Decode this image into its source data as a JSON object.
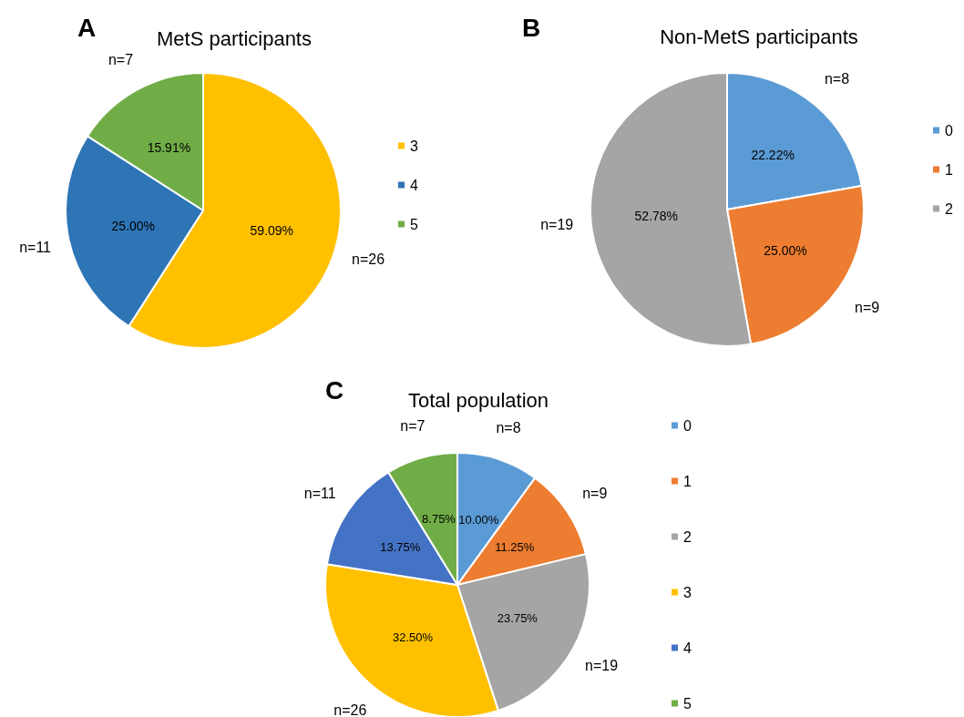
{
  "chart_data": [
    {
      "type": "pie",
      "title": "MetS participants",
      "categories": [
        "3",
        "4",
        "5"
      ],
      "values": [
        59.09,
        25.0,
        15.91
      ],
      "colors": [
        "#ffc000",
        "#2e75b6",
        "#70ad47"
      ],
      "value_labels": [
        "59.09%",
        "25.00%",
        "15.91%"
      ],
      "legend": "right",
      "annotations": [
        "A",
        {
          "text": "n=26",
          "x": "3"
        },
        {
          "text": "n=11",
          "x": "4"
        },
        {
          "text": "n=7",
          "x": "5"
        }
      ]
    },
    {
      "type": "pie",
      "title": "Non-MetS participants",
      "categories": [
        "0",
        "1",
        "2"
      ],
      "values": [
        22.22,
        25.0,
        52.78
      ],
      "colors": [
        "#5b9bd5",
        "#ed7d31",
        "#a5a5a5"
      ],
      "value_labels": [
        "22.22%",
        "25.00%",
        "52.78%"
      ],
      "legend": "right",
      "annotations": [
        "B",
        {
          "text": "n=8",
          "x": "0"
        },
        {
          "text": "n=9",
          "x": "1"
        },
        {
          "text": "n=19",
          "x": "2"
        }
      ]
    },
    {
      "type": "pie",
      "title": "Total population",
      "categories": [
        "0",
        "1",
        "2",
        "3",
        "4",
        "5"
      ],
      "values": [
        10.0,
        11.25,
        23.75,
        32.5,
        13.75,
        8.75
      ],
      "colors": [
        "#5b9bd5",
        "#ed7d31",
        "#a5a5a5",
        "#ffc000",
        "#4472c4",
        "#70ad47"
      ],
      "value_labels": [
        "10.00%",
        "11.25%",
        "23.75%",
        "32.50%",
        "13.75%",
        "8.75%"
      ],
      "legend": "right",
      "annotations": [
        "C",
        {
          "text": "n=8",
          "x": "0"
        },
        {
          "text": "n=9",
          "x": "1"
        },
        {
          "text": "n=19",
          "x": "2"
        },
        {
          "text": "n=26",
          "x": "3"
        },
        {
          "text": "n=11",
          "x": "4"
        },
        {
          "text": "n=7",
          "x": "5"
        }
      ]
    }
  ]
}
